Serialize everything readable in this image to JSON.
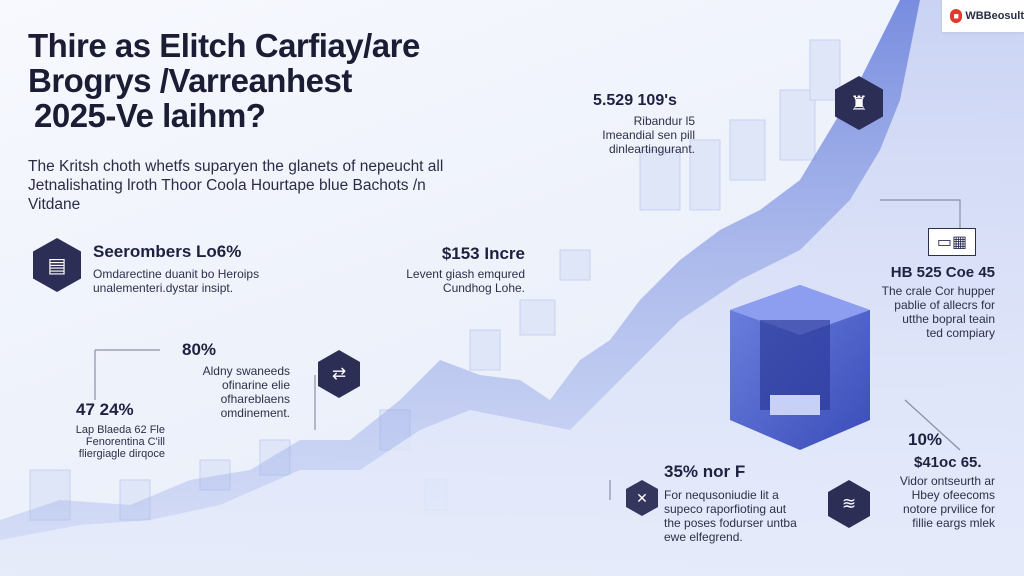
{
  "header": {
    "title_lines": [
      "Thire as Elitch Carfiay/are",
      "Brogrys /Varreanhest",
      "2025-Ve laihm?"
    ],
    "intro_lines": [
      "The Kritsh choth whetfs suparyen the glanets of nepeucht all",
      "Jetnalishating lroth Thoor Coola Hourtape blue Bachots /n",
      "Vitdane"
    ]
  },
  "logo": {
    "text": "WBBeosult",
    "icon": "brand-logo-icon"
  },
  "callouts": {
    "top_center": {
      "value": "5.529 109's",
      "lines": [
        "Ribandur l5",
        "Imeandial sen pill",
        "dinleartingurant."
      ]
    },
    "left_hex": {
      "title": "Seerombers Lo6%",
      "lines": [
        "Omdarectine duanit bo Heroips",
        "unalementeri.dystar insipt."
      ],
      "icon": "report-icon"
    },
    "mid_left": {
      "title": "$153 Incre",
      "lines": [
        "Levent giash emqured",
        "Cundhog Lohe."
      ]
    },
    "eighty": {
      "value": "80%",
      "lines": [
        "Aldny swaneeds",
        "ofinarine elie",
        "ofhareblaens",
        "omdinement."
      ],
      "icon": "link-icon"
    },
    "fortyseven": {
      "value": "47 24%",
      "lines": [
        "Lap Blaeda 62 Fle",
        "Fenorentina C'ill",
        "fliergiagle dirqoce"
      ]
    },
    "right_top": {
      "title": "HB 525 Coe 45",
      "lines": [
        "The crale Cor hupper",
        "pablie of allecrs for",
        "utthe bopral teain",
        "ted compiary"
      ],
      "icon": "printer-icon"
    },
    "ten": {
      "value": "10%",
      "title": "$41oc 65.",
      "lines": [
        "Vidor ontseurth ar",
        "Hbey ofeecoms",
        "notore prvilice for",
        "fillie eargs mlek"
      ]
    },
    "thirtyfive": {
      "title": "35% nor F",
      "lines": [
        "For nequsoniudie lit a",
        "supeco raporfioting aut",
        "the poses fodurser untba",
        "ewe elfegrend."
      ],
      "icon": "gear-icon"
    },
    "hex_top_icon": "chart-icon",
    "bottom_right_icon": "stack-icon"
  }
}
